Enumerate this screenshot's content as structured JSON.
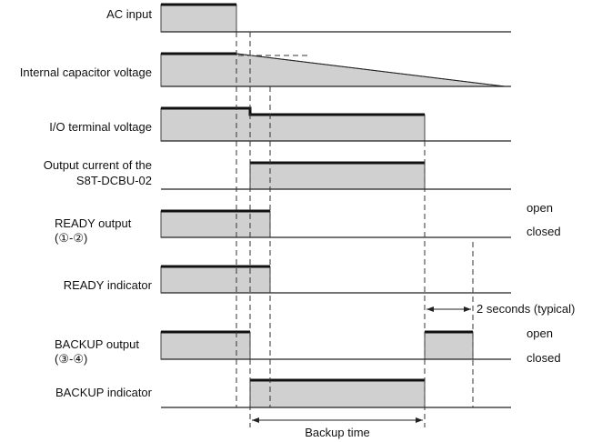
{
  "signals": [
    {
      "id": "ac-input",
      "label_lines": [
        "AC input"
      ]
    },
    {
      "id": "internal-capacitor-voltage",
      "label_lines": [
        "Internal capacitor voltage"
      ]
    },
    {
      "id": "io-terminal-voltage",
      "label_lines": [
        "I/O terminal voltage"
      ]
    },
    {
      "id": "output-current",
      "label_lines": [
        "Output current of the",
        "S8T-DCBU-02"
      ]
    },
    {
      "id": "ready-output",
      "label_lines": [
        "READY output",
        "(①-②)"
      ]
    },
    {
      "id": "ready-indicator",
      "label_lines": [
        "READY indicator"
      ]
    },
    {
      "id": "backup-output",
      "label_lines": [
        "BACKUP output",
        "(③-④)"
      ]
    },
    {
      "id": "backup-indicator",
      "label_lines": [
        "BACKUP indicator"
      ]
    }
  ],
  "state_labels": {
    "ready_open": "open",
    "ready_closed": "closed",
    "backup_open": "open",
    "backup_closed": "closed"
  },
  "annotations": {
    "two_seconds": "2 seconds (typical)",
    "backup_time": "Backup time"
  }
}
